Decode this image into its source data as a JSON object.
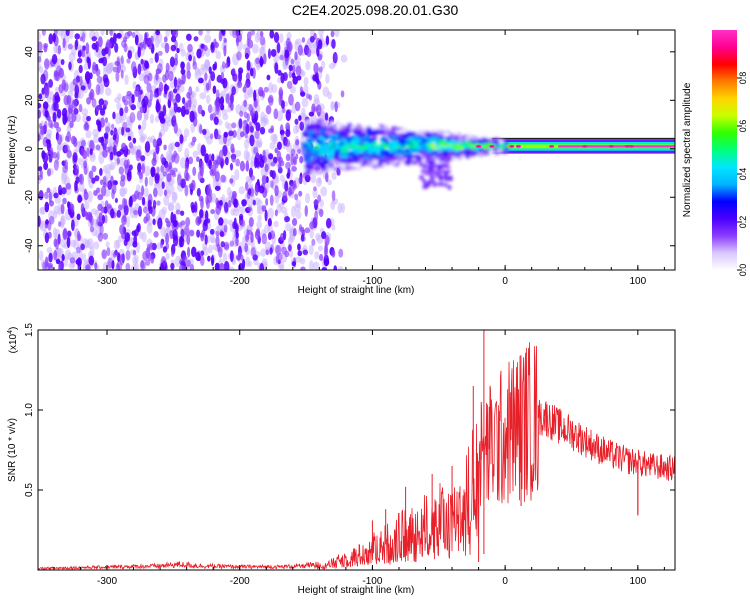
{
  "title": "C2E4.2025.098.20.01.G30",
  "colors": {
    "background": "#ffffff",
    "snr_line": "#e8202a",
    "noise_dots": "#6a00e6",
    "colormap": [
      "#ffffff",
      "#d9c6ff",
      "#8a3cff",
      "#4a00ff",
      "#0000ff",
      "#00b4ff",
      "#00e6ff",
      "#00ff7a",
      "#30ff00",
      "#c8ff00",
      "#ffd400",
      "#ff7a00",
      "#ff0000",
      "#ff0090",
      "#ff30c8"
    ]
  },
  "chart_data": [
    {
      "type": "heatmap",
      "title": "C2E4.2025.098.20.01.G30",
      "xlabel": "Height of straight line (km)",
      "ylabel": "Frequency (Hz)",
      "xlim": [
        -352,
        128
      ],
      "ylim": [
        -50,
        49
      ],
      "xticks": [
        -300,
        -200,
        -100,
        0,
        100
      ],
      "xtick_labels": [
        "-300",
        "-200",
        "-100",
        "0",
        "100"
      ],
      "yticks": [
        -40,
        -20,
        0,
        20,
        40
      ],
      "ytick_labels": [
        "-40",
        "-20",
        "0",
        "20",
        "40"
      ],
      "grid": false,
      "colorbar": {
        "label": "Normalized spectral amplitude",
        "range": [
          0,
          1
        ],
        "ticks": [
          0.0,
          0.2,
          0.4,
          0.6,
          0.8
        ],
        "tick_labels": [
          "0.0",
          "0.2",
          "0.4",
          "0.6",
          "0.8"
        ]
      },
      "regions": [
        {
          "name": "noise",
          "x": [
            -352,
            -120
          ],
          "freq_range": [
            -50,
            49
          ],
          "amplitude": [
            0.0,
            0.2
          ]
        },
        {
          "name": "signal",
          "x": [
            -152,
            128
          ],
          "freq_center": 1,
          "amplitude_peak": 1.0
        }
      ],
      "signal_band_halfwidth": [
        {
          "x": -150,
          "hz": 10
        },
        {
          "x": -120,
          "hz": 8
        },
        {
          "x": -90,
          "hz": 7
        },
        {
          "x": -60,
          "hz": 6
        },
        {
          "x": -40,
          "hz": 5
        },
        {
          "x": -20,
          "hz": 3
        },
        {
          "x": 0,
          "hz": 2
        },
        {
          "x": 50,
          "hz": 2
        },
        {
          "x": 128,
          "hz": 2
        }
      ]
    },
    {
      "type": "line",
      "xlabel": "Height of straight line (km)",
      "ylabel": "SNR (10 * v/v)",
      "y_multiplier": "(x10^4)",
      "y_multiplier_base": "(x10",
      "y_multiplier_exp": "4",
      "y_multiplier_close": ")",
      "xlim": [
        -352,
        128
      ],
      "ylim": [
        0,
        15000
      ],
      "xticks": [
        -300,
        -200,
        -100,
        0,
        100
      ],
      "xtick_labels": [
        "-300",
        "-200",
        "-100",
        "0",
        "100"
      ],
      "yticks": [
        5000,
        10000,
        15000
      ],
      "ytick_labels": [
        "0.5",
        "1.0",
        "1.5"
      ],
      "grid": false,
      "series": [
        {
          "x": [
            -352,
            -320,
            -290,
            -260,
            -245,
            -230,
            -200,
            -170,
            -150,
            -130,
            -120,
            -110,
            -100,
            -90,
            -80,
            -70,
            -60,
            -50,
            -40,
            -30,
            -25,
            -20,
            -16,
            -14,
            -10,
            -5,
            0,
            5,
            10,
            15,
            20,
            25,
            30,
            35,
            40,
            50,
            60,
            70,
            80,
            90,
            100,
            110,
            120,
            128
          ],
          "y": [
            100,
            150,
            200,
            250,
            350,
            250,
            200,
            200,
            250,
            400,
            700,
            900,
            1300,
            1600,
            2000,
            2300,
            2700,
            3000,
            3300,
            4000,
            5000,
            6800,
            7000,
            7300,
            7800,
            8000,
            8400,
            8800,
            9000,
            9300,
            9400,
            9500,
            9600,
            9300,
            9000,
            8600,
            8100,
            7600,
            7200,
            6900,
            6700,
            6500,
            6400,
            6300
          ],
          "spikes": [
            {
              "x": -16,
              "y": 15000
            },
            {
              "x": -24,
              "y": 11500
            },
            {
              "x": -18,
              "y": 10500
            },
            {
              "x": -12,
              "y": 10200
            },
            {
              "x": 5,
              "y": 10800
            },
            {
              "x": 10,
              "y": 11300
            },
            {
              "x": 25,
              "y": 10300
            },
            {
              "x": 30,
              "y": 10000
            },
            {
              "x": -40,
              "y": 6500
            },
            {
              "x": -55,
              "y": 6000
            },
            {
              "x": -75,
              "y": 5200
            },
            {
              "x": -90,
              "y": 3800
            },
            {
              "x": -100,
              "y": 3100
            },
            {
              "x": -110,
              "y": 1600
            },
            {
              "x": 100,
              "y": 3400
            }
          ],
          "dips": [
            {
              "x": -20,
              "y": 500
            },
            {
              "x": -16,
              "y": 1000
            },
            {
              "x": 12,
              "y": 4000
            },
            {
              "x": 100,
              "y": 3500
            }
          ]
        }
      ]
    }
  ]
}
